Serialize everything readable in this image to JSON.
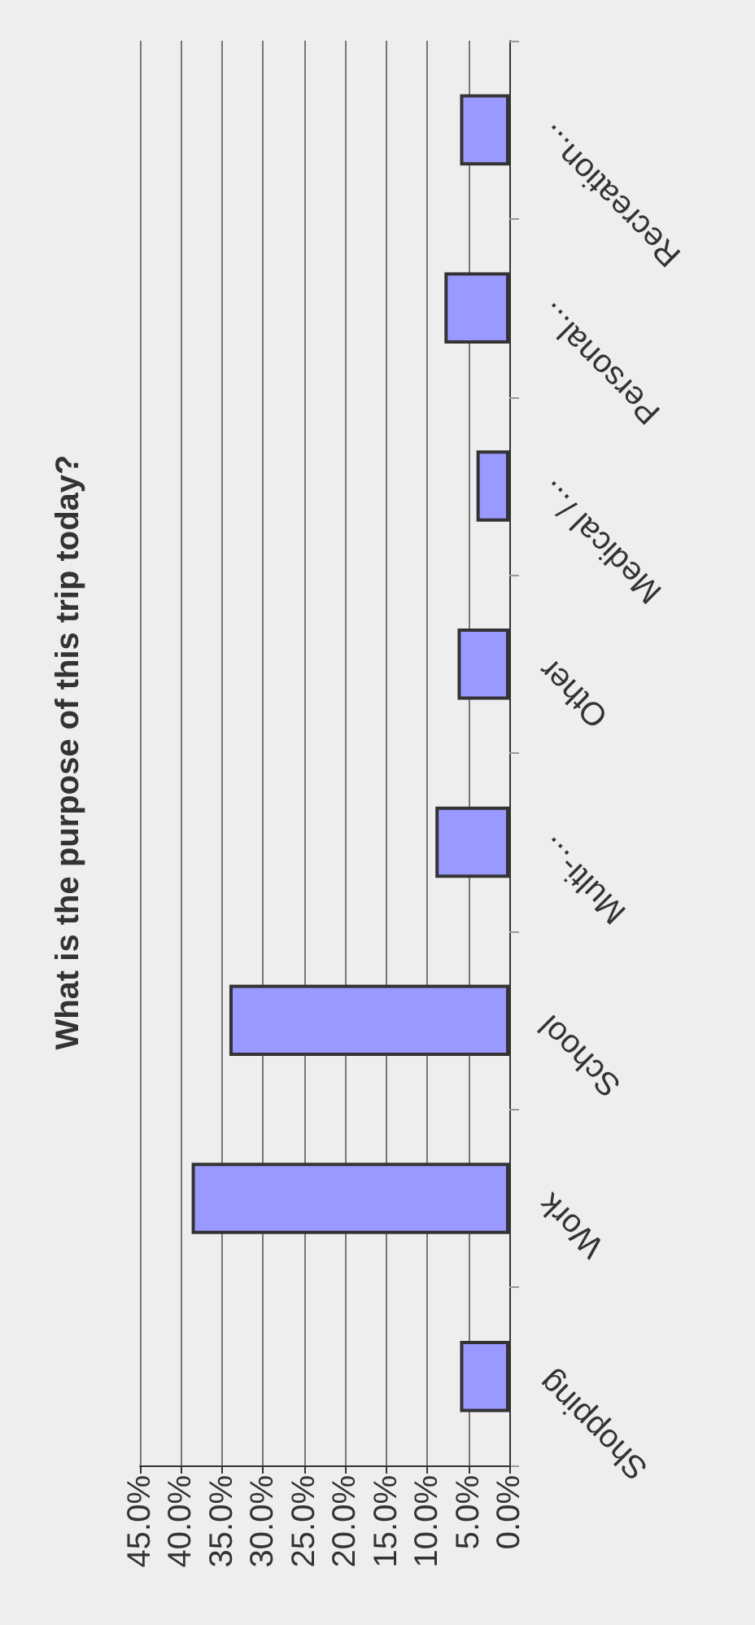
{
  "chart_data": {
    "type": "bar",
    "title": "What is the purpose of this trip today?",
    "orientation": "horizontal",
    "categories": [
      "Recreation...",
      "Personal...",
      "Medical /...",
      "Other",
      "Multi-...",
      "School",
      "Work",
      "Shopping"
    ],
    "values": [
      6.0,
      7.9,
      4.0,
      6.3,
      9.0,
      34.1,
      38.7,
      6.0
    ],
    "color": "#9999ff",
    "xlim": [
      45,
      0
    ],
    "xticks": [
      {
        "value": 45,
        "label": "45.0%"
      },
      {
        "value": 40,
        "label": "40.0%"
      },
      {
        "value": 35,
        "label": "35.0%"
      },
      {
        "value": 30,
        "label": "30.0%"
      },
      {
        "value": 25,
        "label": "25.0%"
      },
      {
        "value": 20,
        "label": "20.0%"
      },
      {
        "value": 15,
        "label": "15.0%"
      },
      {
        "value": 10,
        "label": "10.0%"
      },
      {
        "value": 5,
        "label": "5.0%"
      },
      {
        "value": 0,
        "label": "0.0%"
      }
    ],
    "grid": "x"
  }
}
